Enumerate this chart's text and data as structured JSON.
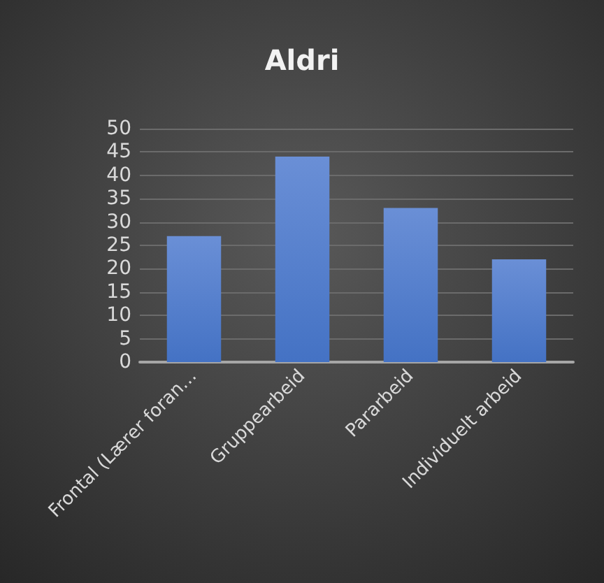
{
  "chart_data": {
    "type": "bar",
    "title": "Aldri",
    "categories": [
      "Frontal (Lærer foran…",
      "Gruppearbeid",
      "Pararbeid",
      "Individuelt arbeid"
    ],
    "values": [
      27,
      44,
      33,
      22
    ],
    "color": "#4472c4",
    "ylim": [
      0,
      50
    ],
    "yticks": [
      0,
      5,
      10,
      15,
      20,
      25,
      30,
      35,
      40,
      45,
      50
    ],
    "grid": "y"
  }
}
